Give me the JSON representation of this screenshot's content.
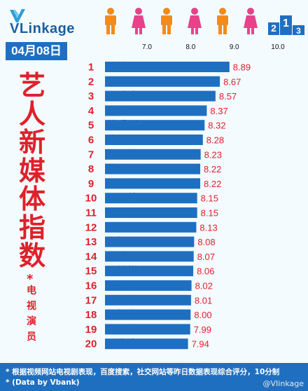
{
  "brand": {
    "name": "VLinkage"
  },
  "date": "04月08日",
  "title_chars": [
    "艺",
    "人",
    "新",
    "媒",
    "体",
    "指",
    "数"
  ],
  "star": "*",
  "subtitle_chars": [
    "电",
    "视",
    "演",
    "员"
  ],
  "footer": {
    "note": "* 根据视频网站电视剧表现，百度搜索，社交网站等昨日数据表现综合评分，10分制",
    "source": "* (Data by Vbank)",
    "watermark": "@VIinkage"
  },
  "colors": {
    "bar": "#1f6fc0",
    "rank": "#e0202a",
    "value": "#e0202a",
    "title": "#e0202a",
    "footer_bg": "#1f6fc0",
    "person_orange": "#f28a1e",
    "person_pink": "#e8428a"
  },
  "chart_data": {
    "type": "bar",
    "orientation": "horizontal",
    "xlim": [
      6.5,
      10.0
    ],
    "x_ticks": [
      "7.0",
      "8.0",
      "9.0",
      "10.0"
    ],
    "grid": false,
    "ranks": [
      "1",
      "2",
      "3",
      "4",
      "5",
      "6",
      "7",
      "8",
      "9",
      "10",
      "11",
      "12",
      "13",
      "14",
      "15",
      "16",
      "17",
      "18",
      "19",
      "20"
    ],
    "categories": [
      "鞠婧祎",
      "张艺兴",
      "于朦胧",
      "郑爽",
      "曾舜晞",
      "陈钰琪",
      "朱一龙",
      "黄子韬",
      "赵丽颖",
      "吴倩",
      "王鸥",
      "张铭恩",
      "杨幂",
      "祝绪丹",
      "徐悦",
      "陈小纭",
      "肖燕",
      "杨紫",
      "邓伦",
      "白鹿"
    ],
    "values": [
      8.89,
      8.67,
      8.57,
      8.37,
      8.32,
      8.28,
      8.23,
      8.22,
      8.22,
      8.15,
      8.15,
      8.13,
      8.08,
      8.07,
      8.06,
      8.02,
      8.01,
      8.0,
      7.99,
      7.94
    ],
    "value_labels": [
      "8.89",
      "8.67",
      "8.57",
      "8.37",
      "8.32",
      "8.28",
      "8.23",
      "8.22",
      "8.22",
      "8.15",
      "8.15",
      "8.13",
      "8.08",
      "8.07",
      "8.06",
      "8.02",
      "8.01",
      "8.00",
      "7.99",
      "7.94"
    ]
  }
}
